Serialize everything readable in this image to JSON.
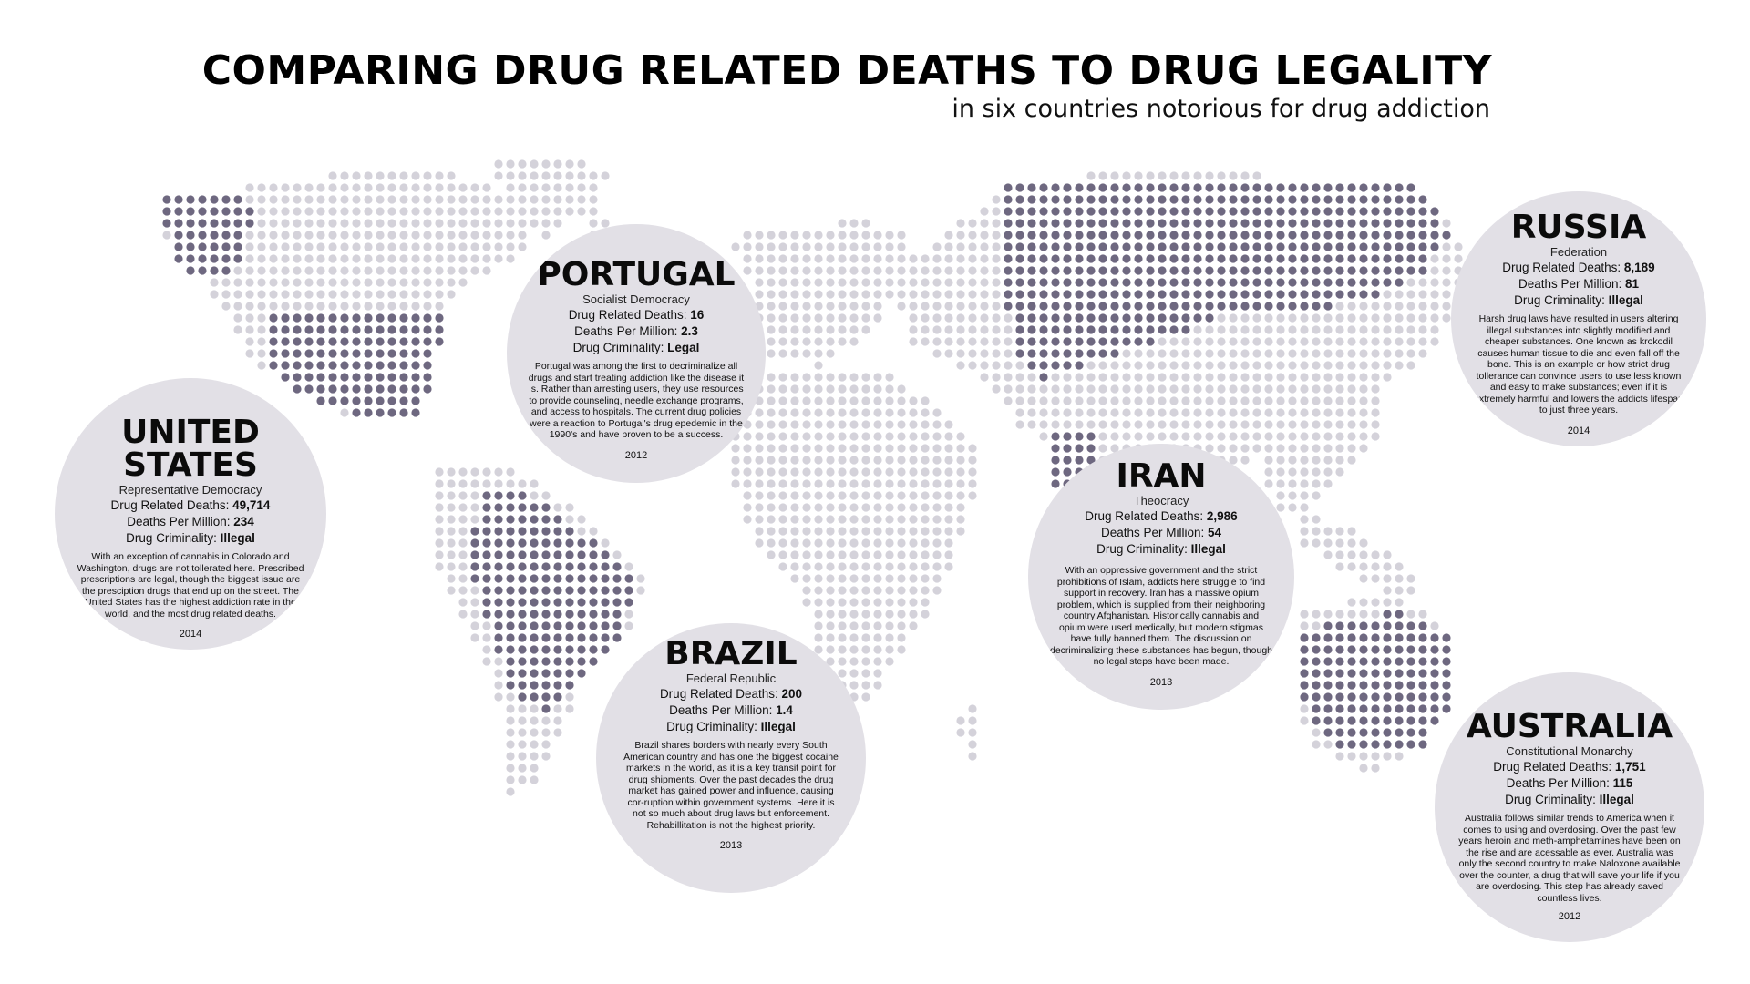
{
  "title": "COMPARING DRUG RELATED DEATHS TO DRUG LEGALITY",
  "subtitle": "in six countries notorious for drug addiction",
  "colors": {
    "background": "#ffffff",
    "land_dot": "#d4d2da",
    "highlight_dot": "#6e6880",
    "circle_fill": "#e2e0e6",
    "text": "#111111"
  },
  "labels": {
    "deaths": "Drug Related Deaths:",
    "per_million": "Deaths Per Million:",
    "criminality": "Drug Criminality:"
  },
  "countries": [
    {
      "key": "us",
      "name_lines": [
        "UNITED",
        "STATES"
      ],
      "government": "Representative Democracy",
      "deaths": "49,714",
      "per_million": "234",
      "criminality": "Illegal",
      "description": "With an exception of cannabis in Colorado and Washington, drugs are not tollerated here. Prescribed prescriptions are legal, though the biggest issue are the presciption drugs that end up on the street. The United States has the highest addiction rate in the world, and the most drug related deaths.",
      "year": "2014"
    },
    {
      "key": "portugal",
      "name_lines": [
        "PORTUGAL"
      ],
      "government": "Socialist Democracy",
      "deaths": "16",
      "per_million": "2.3",
      "criminality": "Legal",
      "description": "Portugal was among the first to decriminalize all drugs and start treating addiction like the disease it is. Rather than arresting users, they use resources to provide counseling, needle exchange programs, and access to hospitals. The current drug policies were a reaction to Portugal's drug epedemic in the 1990's and have proven to be a success.",
      "year": "2012"
    },
    {
      "key": "brazil",
      "name_lines": [
        "BRAZIL"
      ],
      "government": "Federal Republic",
      "deaths": "200",
      "per_million": "1.4",
      "criminality": "Illegal",
      "description": "Brazil shares borders with nearly every South American country and has one the biggest cocaine markets in the world, as it is a key transit point for drug shipments. Over the past decades the drug market has gained power and influence, causing cor-ruption within government systems. Here it is not so much about drug laws but enforcement. Rehabillitation is not the highest priority.",
      "year": "2013"
    },
    {
      "key": "iran",
      "name_lines": [
        "IRAN"
      ],
      "government": "Theocracy",
      "deaths": "2,986",
      "per_million": "54",
      "criminality": "Illegal",
      "description": "With an oppressive government and the strict prohibitions of Islam, addicts here struggle to find support in recovery. Iran has a massive opium problem, which is supplied from their neighboring country Afghanistan. Historically cannabis and opium were used medically, but modern stigmas have fully banned them. The discussion on decriminalizing these substances has begun, though no legal steps have been made.",
      "year": "2013"
    },
    {
      "key": "russia",
      "name_lines": [
        "RUSSIA"
      ],
      "government": "Federation",
      "deaths": "8,189",
      "per_million": "81",
      "criminality": "Illegal",
      "description": "Harsh drug laws have resulted in users altering illegal substances into slightly modified and cheaper substances. One known as krokodil causes human tissue to die and even fall off the bone. This is an example or how strict drug tollerance can convince users to use less known and easy to make substances; even if it is extremely harmful and lowers the addicts lifespan to just three years.",
      "year": "2014"
    },
    {
      "key": "australia",
      "name_lines": [
        "AUSTRALIA"
      ],
      "government": "Constitutional Monarchy",
      "deaths": "1,751",
      "per_million": "115",
      "criminality": "Illegal",
      "description": "Australia follows similar trends to America when it comes to using and overdosing. Over the past few years heroin and meth-amphetamines have been on the rise and are acessable as ever. Australia was only the second country to make Naloxone available over the counter, a drug that will save your life if you are overdosing. This step has already saved countless lives.",
      "year": "2012"
    }
  ]
}
